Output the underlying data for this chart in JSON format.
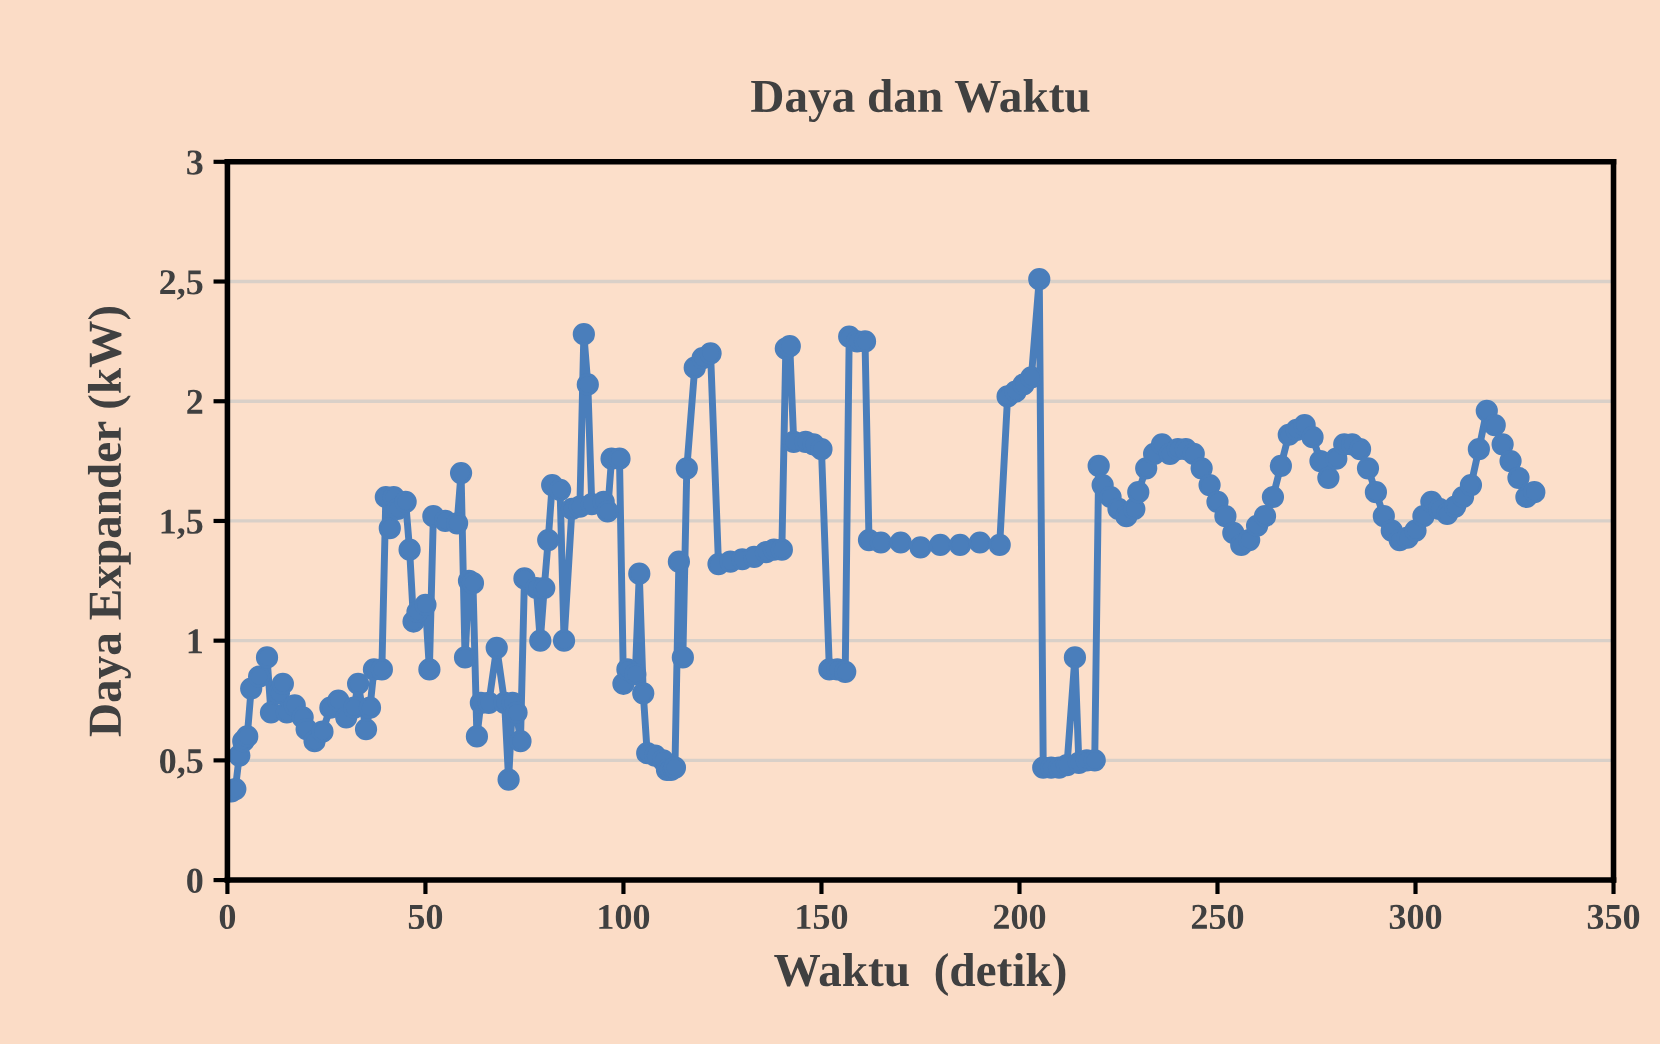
{
  "chart_data": {
    "type": "line",
    "title": "Daya dan Waktu",
    "xlabel": "Waktu  (detik)",
    "ylabel": "Daya Expander (kW)",
    "x": [
      1,
      2,
      3,
      4,
      5,
      6,
      8,
      10,
      11,
      13,
      14,
      15,
      17,
      19,
      20,
      22,
      24,
      26,
      28,
      30,
      32,
      33,
      35,
      36,
      37,
      39,
      40,
      41,
      42,
      43,
      45,
      46,
      47,
      48,
      50,
      51,
      52,
      55,
      58,
      59,
      60,
      61,
      62,
      63,
      64,
      66,
      68,
      70,
      71,
      72,
      73,
      74,
      75,
      78,
      79,
      80,
      81,
      82,
      84,
      85,
      87,
      89,
      90,
      91,
      92,
      95,
      96,
      97,
      99,
      100,
      101,
      103,
      104,
      105,
      106,
      108,
      110,
      111,
      112,
      113,
      114,
      115,
      116,
      118,
      120,
      122,
      124,
      127,
      130,
      133,
      136,
      138,
      140,
      141,
      142,
      143,
      146,
      148,
      150,
      152,
      154,
      156,
      157,
      159,
      161,
      162,
      165,
      170,
      175,
      180,
      185,
      190,
      195,
      197,
      199,
      201,
      203,
      205,
      206,
      208,
      210,
      212,
      214,
      215,
      217,
      219,
      220,
      221,
      223,
      225,
      227,
      229,
      230,
      232,
      234,
      236,
      238,
      240,
      242,
      244,
      246,
      248,
      250,
      252,
      254,
      256,
      258,
      260,
      262,
      264,
      266,
      268,
      270,
      272,
      274,
      276,
      278,
      280,
      282,
      284,
      286,
      288,
      290,
      292,
      294,
      296,
      298,
      300,
      302,
      304,
      306,
      308,
      310,
      312,
      314,
      316,
      318,
      320,
      322,
      324,
      326,
      328,
      330
    ],
    "series": [
      {
        "color": "#4a7ebb",
        "values": [
          0.37,
          0.38,
          0.52,
          0.58,
          0.6,
          0.8,
          0.85,
          0.93,
          0.7,
          0.78,
          0.82,
          0.7,
          0.73,
          0.68,
          0.63,
          0.58,
          0.62,
          0.72,
          0.75,
          0.68,
          0.72,
          0.82,
          0.63,
          0.72,
          0.88,
          0.88,
          1.6,
          1.47,
          1.6,
          1.55,
          1.58,
          1.38,
          1.08,
          1.12,
          1.15,
          0.88,
          1.52,
          1.5,
          1.49,
          1.7,
          0.93,
          1.25,
          1.24,
          0.6,
          0.74,
          0.74,
          0.97,
          0.74,
          0.42,
          0.74,
          0.7,
          0.58,
          1.26,
          1.22,
          1.0,
          1.22,
          1.42,
          1.65,
          1.63,
          1.0,
          1.55,
          1.56,
          2.28,
          2.07,
          1.57,
          1.58,
          1.54,
          1.76,
          1.76,
          0.82,
          0.88,
          0.86,
          1.28,
          0.78,
          0.53,
          0.52,
          0.5,
          0.46,
          0.46,
          0.47,
          1.33,
          0.93,
          1.72,
          2.14,
          2.18,
          2.2,
          1.32,
          1.33,
          1.34,
          1.35,
          1.37,
          1.38,
          1.38,
          2.22,
          2.23,
          1.83,
          1.83,
          1.82,
          1.8,
          0.88,
          0.88,
          0.87,
          2.27,
          2.25,
          2.25,
          1.42,
          1.41,
          1.41,
          1.39,
          1.4,
          1.4,
          1.41,
          1.4,
          2.02,
          2.04,
          2.07,
          2.1,
          2.51,
          0.47,
          0.47,
          0.47,
          0.48,
          0.93,
          0.49,
          0.5,
          0.5,
          1.73,
          1.65,
          1.6,
          1.55,
          1.52,
          1.55,
          1.62,
          1.72,
          1.78,
          1.82,
          1.78,
          1.8,
          1.8,
          1.78,
          1.72,
          1.65,
          1.58,
          1.52,
          1.45,
          1.4,
          1.42,
          1.48,
          1.52,
          1.6,
          1.73,
          1.86,
          1.88,
          1.9,
          1.85,
          1.75,
          1.68,
          1.76,
          1.82,
          1.82,
          1.8,
          1.72,
          1.62,
          1.52,
          1.46,
          1.42,
          1.43,
          1.46,
          1.52,
          1.58,
          1.55,
          1.53,
          1.56,
          1.6,
          1.65,
          1.8,
          1.96,
          1.9,
          1.82,
          1.75,
          1.68,
          1.6,
          1.62
        ]
      }
    ],
    "xlim": [
      0,
      350
    ],
    "xticks": [
      0,
      50,
      100,
      150,
      200,
      250,
      300,
      350
    ],
    "ylim": [
      0,
      3
    ],
    "yticks": [
      0,
      {
        "value": 0.5,
        "label": "0,5"
      },
      1,
      {
        "value": 1.5,
        "label": "1,5"
      },
      2,
      {
        "value": 2.5,
        "label": "2,5"
      },
      3
    ],
    "grid": "y",
    "legend": false,
    "marker": "circle",
    "line_style": "solid"
  }
}
